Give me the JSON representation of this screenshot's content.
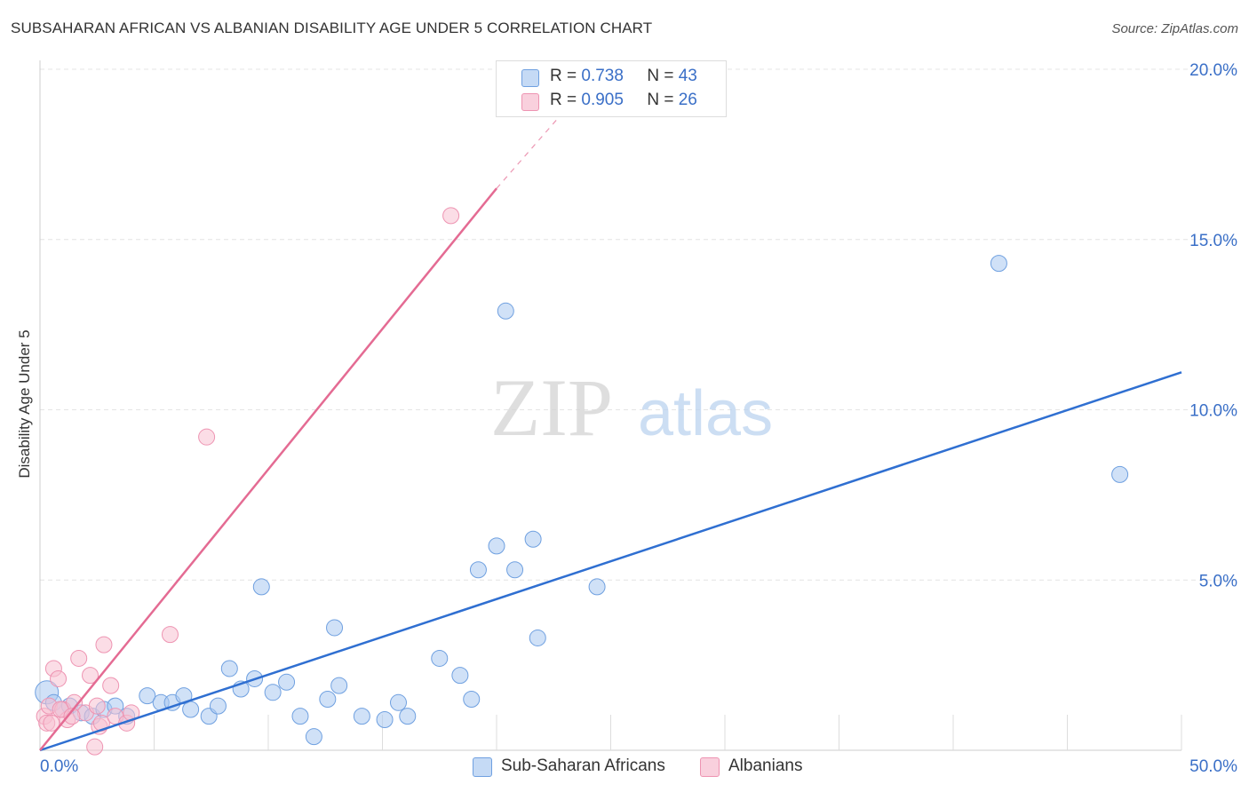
{
  "title": "SUBSAHARAN AFRICAN VS ALBANIAN DISABILITY AGE UNDER 5 CORRELATION CHART",
  "source": "Source: ZipAtlas.com",
  "watermark": {
    "zip": "ZIP",
    "atlas": "atlas"
  },
  "legend": {
    "r_label": "R =",
    "n_label": "N =",
    "series": [
      {
        "r": "0.738",
        "n": "43"
      },
      {
        "r": "0.905",
        "n": "26"
      }
    ]
  },
  "chart_data": {
    "type": "scatter",
    "xlabel": "",
    "ylabel": "Disability Age Under 5",
    "xlim": [
      0,
      50
    ],
    "ylim": [
      0,
      20
    ],
    "x_tick_labels": [
      "0.0%",
      "50.0%"
    ],
    "y_ticks": [
      5,
      10,
      15,
      20
    ],
    "y_tick_labels": [
      "5.0%",
      "10.0%",
      "15.0%",
      "20.0%"
    ],
    "grid": true,
    "legend_position": "top-center",
    "series": [
      {
        "name": "Sub-Saharan Africans",
        "color": "#a9c8f0",
        "edge_color": "#6fa0e0",
        "line_color": "#2f6fd1",
        "trend": {
          "x": [
            0,
            50
          ],
          "y": [
            0.0,
            11.1
          ]
        },
        "points": [
          [
            0.3,
            1.7
          ],
          [
            0.6,
            1.4
          ],
          [
            1.0,
            1.2
          ],
          [
            1.3,
            1.3
          ],
          [
            1.8,
            1.1
          ],
          [
            2.3,
            1.0
          ],
          [
            2.8,
            1.2
          ],
          [
            3.3,
            1.3
          ],
          [
            3.8,
            1.0
          ],
          [
            4.7,
            1.6
          ],
          [
            5.3,
            1.4
          ],
          [
            5.8,
            1.4
          ],
          [
            6.3,
            1.6
          ],
          [
            6.6,
            1.2
          ],
          [
            7.4,
            1.0
          ],
          [
            7.8,
            1.3
          ],
          [
            8.3,
            2.4
          ],
          [
            8.8,
            1.8
          ],
          [
            9.4,
            2.1
          ],
          [
            9.7,
            4.8
          ],
          [
            10.2,
            1.7
          ],
          [
            10.8,
            2.0
          ],
          [
            11.4,
            1.0
          ],
          [
            12.0,
            0.4
          ],
          [
            12.6,
            1.5
          ],
          [
            12.9,
            3.6
          ],
          [
            13.1,
            1.9
          ],
          [
            14.1,
            1.0
          ],
          [
            15.1,
            0.9
          ],
          [
            15.7,
            1.4
          ],
          [
            16.1,
            1.0
          ],
          [
            17.5,
            2.7
          ],
          [
            18.4,
            2.2
          ],
          [
            18.9,
            1.5
          ],
          [
            19.2,
            5.3
          ],
          [
            20.0,
            6.0
          ],
          [
            20.4,
            12.9
          ],
          [
            20.8,
            5.3
          ],
          [
            21.6,
            6.2
          ],
          [
            21.8,
            3.3
          ],
          [
            24.4,
            4.8
          ],
          [
            42.0,
            14.3
          ],
          [
            47.3,
            8.1
          ]
        ]
      },
      {
        "name": "Albanians",
        "color": "#f7c1d2",
        "edge_color": "#ee94b2",
        "line_color": "#e46b93",
        "trend": {
          "x": [
            0,
            20
          ],
          "y": [
            0.0,
            16.5
          ]
        },
        "trend_dashed": {
          "x": [
            20,
            23
          ],
          "y": [
            16.5,
            18.8
          ]
        },
        "points": [
          [
            0.2,
            1.0
          ],
          [
            0.3,
            0.8
          ],
          [
            0.4,
            1.3
          ],
          [
            0.6,
            2.4
          ],
          [
            0.8,
            2.1
          ],
          [
            1.0,
            1.2
          ],
          [
            1.2,
            0.9
          ],
          [
            1.5,
            1.4
          ],
          [
            1.7,
            2.7
          ],
          [
            2.0,
            1.1
          ],
          [
            2.2,
            2.2
          ],
          [
            2.4,
            0.1
          ],
          [
            2.6,
            0.7
          ],
          [
            2.7,
            0.8
          ],
          [
            2.8,
            3.1
          ],
          [
            3.1,
            1.9
          ],
          [
            3.3,
            1.0
          ],
          [
            3.8,
            0.8
          ],
          [
            4.0,
            1.1
          ],
          [
            5.7,
            3.4
          ],
          [
            7.3,
            9.2
          ],
          [
            18.0,
            15.7
          ],
          [
            0.9,
            1.2
          ],
          [
            1.4,
            1.0
          ],
          [
            2.5,
            1.3
          ],
          [
            0.5,
            0.8
          ]
        ]
      }
    ]
  }
}
